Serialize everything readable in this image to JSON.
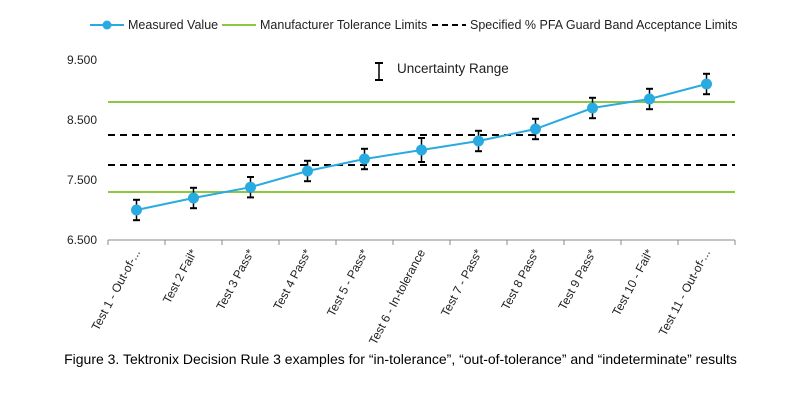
{
  "chart_data": {
    "type": "line",
    "categories": [
      "Test 1 - Out-of-...",
      "Test 2 Fail*",
      "Test 3 Pass*",
      "Test 4 Pass*",
      "Test 5 - Pass*",
      "Test 6 - In-tolerance",
      "Test 7 - Pass*",
      "Test 8 Pass*",
      "Test 9 Pass*",
      "Test 10 - Fail*",
      "Test 11 - Out-of-..."
    ],
    "series": [
      {
        "name": "Measured Value",
        "values": [
          7.0,
          7.2,
          7.38,
          7.65,
          7.85,
          8.0,
          8.15,
          8.35,
          8.7,
          8.85,
          9.1
        ],
        "error": [
          0.17,
          0.17,
          0.17,
          0.17,
          0.17,
          0.2,
          0.17,
          0.17,
          0.17,
          0.17,
          0.17
        ],
        "color": "#29ABE2"
      }
    ],
    "reference_lines": [
      {
        "name": "Manufacturer Tolerance Limits",
        "values": [
          7.3,
          8.8
        ],
        "color": "#8DC63F",
        "style": "solid"
      },
      {
        "name": "Specified % PFA Guard Band Acceptance Limits",
        "values": [
          7.75,
          8.25
        ],
        "color": "#000000",
        "style": "dashed"
      }
    ],
    "yticks": [
      "6.500",
      "7.500",
      "8.500",
      "9.500"
    ],
    "ylim": [
      6.5,
      9.5
    ],
    "annotation": "Uncertainty Range",
    "legend_position": "top",
    "caption": "Figure 3. Tektronix Decision Rule 3 examples for “in-tolerance”, “out-of-tolerance” and “indeterminate” results"
  }
}
